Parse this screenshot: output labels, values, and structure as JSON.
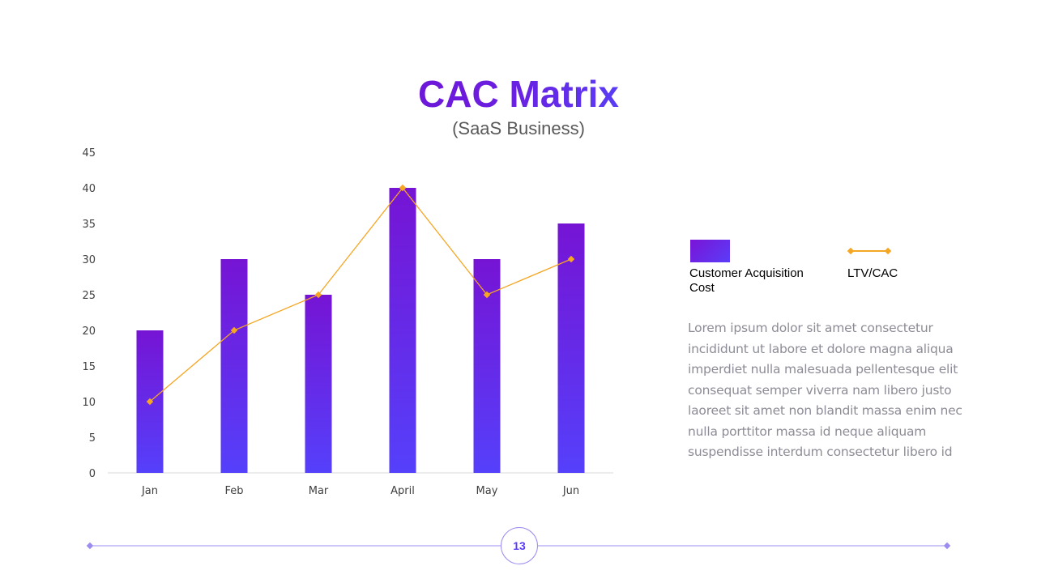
{
  "slide": {
    "title": "CAC Matrix",
    "subtitle": "(SaaS Business)",
    "body_text": "Lorem ipsum dolor sit amet consectetur incididunt ut labore et dolore magna aliqua imperdiet nulla malesuada pellentesque elit consequat semper viverra nam libero justo laoreet sit amet non blandit massa enim nec nulla porttitor massa id neque aliquam suspendisse interdum consectetur libero id",
    "page_number": "13"
  },
  "legend": {
    "cac_label": "Customer Acquisition Cost",
    "ltv_label": "LTV/CAC"
  },
  "colors": {
    "bar_top": "#7614d4",
    "bar_bottom": "#5540fb",
    "line": "#f5a623",
    "axis": "#d9d9d9",
    "tick_text": "#404040",
    "title_start": "#6d17d8",
    "title_end": "#5a3cf5",
    "footer_line": "#9b8cf0"
  },
  "chart_data": {
    "type": "bar",
    "categories": [
      "Jan",
      "Feb",
      "Mar",
      "April",
      "May",
      "Jun"
    ],
    "series": [
      {
        "name": "Customer Acquisition Cost",
        "type": "bar",
        "values": [
          20,
          30,
          25,
          40,
          30,
          35
        ]
      },
      {
        "name": "LTV/CAC",
        "type": "line",
        "values": [
          10,
          20,
          25,
          40,
          25,
          30
        ]
      }
    ],
    "title": "",
    "xlabel": "",
    "ylabel": "",
    "ylim": [
      0,
      45
    ],
    "yticks": [
      0,
      5,
      10,
      15,
      20,
      25,
      30,
      35,
      40,
      45
    ],
    "grid": false,
    "legend_position": "right"
  }
}
